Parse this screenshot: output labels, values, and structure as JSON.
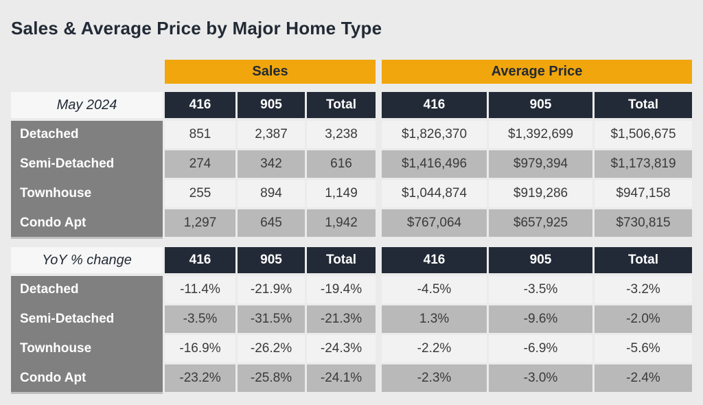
{
  "title": "Sales & Average Price by Major Home Type",
  "colors": {
    "accent_band": "#f0a60c",
    "header_dark": "#232a37",
    "label_gray": "#808080",
    "row_light": "#f2f2f2",
    "row_shaded": "#b9b9b9",
    "corner_bg": "#f7f7f7",
    "page_bg": "#ebebeb",
    "title_text": "#222a35"
  },
  "chart_data": {
    "type": "table",
    "title": "Sales & Average Price by Major Home Type",
    "column_groups": [
      "Sales",
      "Average Price"
    ],
    "sub_columns": [
      "416",
      "905",
      "Total"
    ],
    "sections": [
      {
        "corner_label": "May 2024",
        "rows": [
          {
            "label": "Detached",
            "values": [
              "851",
              "2,387",
              "3,238",
              "$1,826,370",
              "$1,392,699",
              "$1,506,675"
            ]
          },
          {
            "label": "Semi-Detached",
            "values": [
              "274",
              "342",
              "616",
              "$1,416,496",
              "$979,394",
              "$1,173,819"
            ]
          },
          {
            "label": "Townhouse",
            "values": [
              "255",
              "894",
              "1,149",
              "$1,044,874",
              "$919,286",
              "$947,158"
            ]
          },
          {
            "label": "Condo Apt",
            "values": [
              "1,297",
              "645",
              "1,942",
              "$767,064",
              "$657,925",
              "$730,815"
            ]
          }
        ]
      },
      {
        "corner_label": "YoY % change",
        "rows": [
          {
            "label": "Detached",
            "values": [
              "-11.4%",
              "-21.9%",
              "-19.4%",
              "-4.5%",
              "-3.5%",
              "-3.2%"
            ]
          },
          {
            "label": "Semi-Detached",
            "values": [
              "-3.5%",
              "-31.5%",
              "-21.3%",
              "1.3%",
              "-9.6%",
              "-2.0%"
            ]
          },
          {
            "label": "Townhouse",
            "values": [
              "-16.9%",
              "-26.2%",
              "-24.3%",
              "-2.2%",
              "-6.9%",
              "-5.6%"
            ]
          },
          {
            "label": "Condo Apt",
            "values": [
              "-23.2%",
              "-25.8%",
              "-24.1%",
              "-2.3%",
              "-3.0%",
              "-2.4%"
            ]
          }
        ]
      }
    ]
  }
}
